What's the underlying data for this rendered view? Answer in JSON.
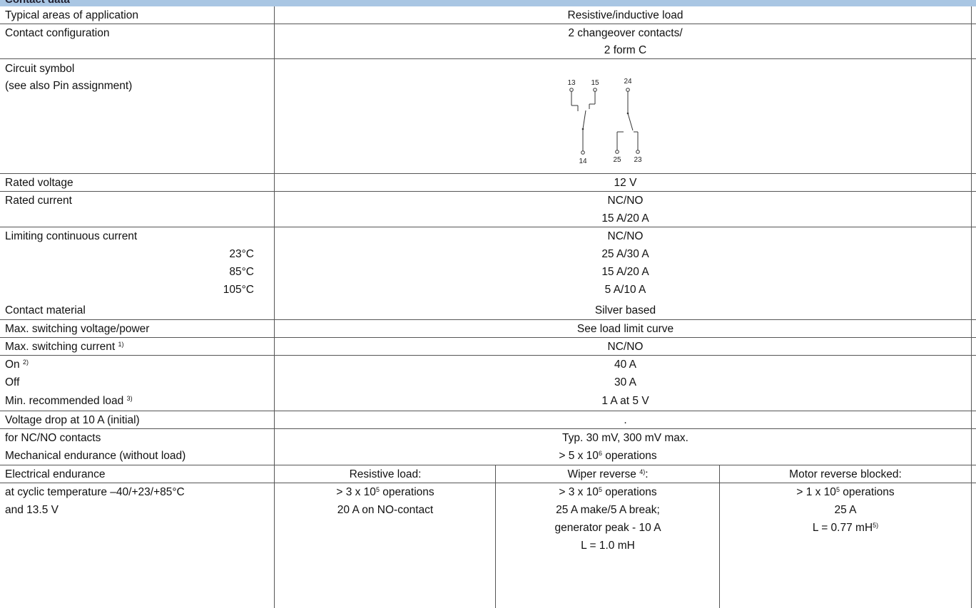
{
  "header": {
    "title": "Contact data"
  },
  "rows": {
    "app": {
      "label": "Typical areas of application",
      "value": "Resistive/inductive load"
    },
    "config": {
      "label": "Contact configuration",
      "value1": "2 changeover contacts/",
      "value2": "2 form C"
    },
    "symbol": {
      "label1": "Circuit symbol",
      "label2": "(see also Pin assignment)",
      "pins": {
        "p13": "13",
        "p15": "15",
        "p24": "24",
        "p14": "14",
        "p25": "25",
        "p23": "23"
      }
    },
    "rated_voltage": {
      "label": "Rated voltage",
      "value": "12 V"
    },
    "rated_current": {
      "label": "Rated current",
      "value1": "NC/NO",
      "value2": "15 A/20 A"
    },
    "limiting": {
      "label": "Limiting continuous current",
      "header": "NC/NO",
      "temps": [
        {
          "t": "23°C",
          "v": "25 A/30 A"
        },
        {
          "t": "85°C",
          "v": "15 A/20 A"
        },
        {
          "t": "105°C",
          "v": "5 A/10 A"
        }
      ]
    },
    "material": {
      "label": "Contact material",
      "value": "Silver based"
    },
    "max_voltage": {
      "label": "Max. switching voltage/power",
      "value": "See load limit curve"
    },
    "max_current": {
      "label": "Max. switching current",
      "label_fn": "1)",
      "header": "NC/NO",
      "on_label": "On",
      "on_fn": "2)",
      "on_value": "40 A",
      "off_label": "Off",
      "off_value": "30 A"
    },
    "min_load": {
      "label": "Min. recommended load",
      "label_fn": "3)",
      "value": "1 A at 5 V"
    },
    "voltage_drop": {
      "label1": "Voltage drop at 10 A (initial)",
      "label2": "for NC/NO contacts",
      "value1": ".",
      "value2": "Typ. 30 mV, 300 mV max."
    },
    "mech": {
      "label": "Mechanical endurance (without load)",
      "value_pre": "> 5 x 10",
      "value_exp": "6",
      "value_post": " operations"
    },
    "elec": {
      "label1": "Electrical endurance",
      "label2": "at cyclic temperature –40/+23/+85°C",
      "label3": "and 13.5 V",
      "col1": {
        "l1": "Resistive load:",
        "l2_pre": "> 3 x 10",
        "l2_exp": "5",
        "l2_post": " operations",
        "l3": "20 A on NO-contact"
      },
      "col2": {
        "l1_pre": "Wiper reverse ",
        "l1_fn": "4)",
        "l1_post": ":",
        "l2_pre": "> 3 x 10",
        "l2_exp": "5",
        "l2_post": " operations",
        "l3": "25 A make/5 A break;",
        "l4": "generator peak - 10 A",
        "l5": "L = 1.0 mH"
      },
      "col3": {
        "l1": "Motor reverse blocked:",
        "l2_pre": "> 1 x 10",
        "l2_exp": "5",
        "l2_post": " operations",
        "l3": "25 A",
        "l4_pre": "L = 0.77 mH",
        "l4_fn": "5)"
      }
    }
  }
}
